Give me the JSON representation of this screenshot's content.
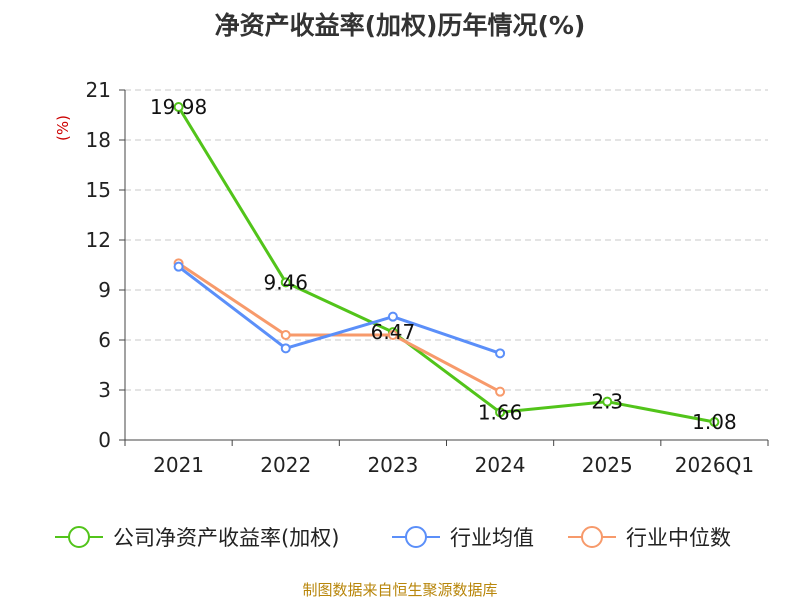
{
  "chart_data": {
    "type": "line",
    "title": "净资产收益率(加权)历年情况(%)",
    "ylabel": "(%)",
    "xlabel": "",
    "categories": [
      "2021",
      "2022",
      "2023",
      "2024",
      "2025",
      "2026Q1"
    ],
    "ylim": [
      0,
      21
    ],
    "yticks": [
      0,
      3,
      6,
      9,
      12,
      15,
      18,
      21
    ],
    "grid": true,
    "legend_position": "bottom",
    "series": [
      {
        "name": "公司净资产收益率(加权)",
        "color": "#52c41a",
        "values": [
          19.98,
          9.46,
          6.47,
          1.66,
          2.3,
          1.08
        ],
        "labels": [
          "19.98",
          "9.46",
          "6.47",
          "1.66",
          "2.3",
          "1.08"
        ]
      },
      {
        "name": "行业均值",
        "color": "#5b8ff9",
        "values": [
          10.4,
          5.5,
          7.4,
          5.2,
          null,
          null
        ]
      },
      {
        "name": "行业中位数",
        "color": "#f79a6b",
        "values": [
          10.6,
          6.3,
          6.3,
          2.9,
          null,
          null
        ]
      }
    ]
  },
  "footer": {
    "source": "制图数据来自恒生聚源数据库"
  }
}
